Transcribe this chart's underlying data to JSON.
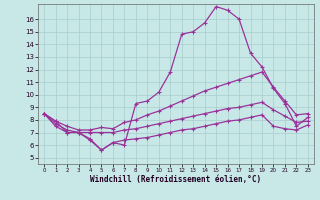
{
  "background_color": "#c8e8e8",
  "grid_color": "#a8cccc",
  "line_color": "#993399",
  "xlabel": "Windchill (Refroidissement éolien,°C)",
  "xlim": [
    -0.5,
    23.5
  ],
  "ylim": [
    4.5,
    17.2
  ],
  "yticks": [
    5,
    6,
    7,
    8,
    9,
    10,
    11,
    12,
    13,
    14,
    15,
    16
  ],
  "xticks": [
    0,
    1,
    2,
    3,
    4,
    5,
    6,
    7,
    8,
    9,
    10,
    11,
    12,
    13,
    14,
    15,
    16,
    17,
    18,
    19,
    20,
    21,
    22,
    23
  ],
  "line1_y": [
    8.5,
    7.9,
    7.0,
    7.0,
    6.5,
    5.6,
    6.2,
    6.0,
    9.3,
    9.5,
    10.2,
    11.8,
    14.8,
    15.0,
    15.7,
    17.0,
    16.7,
    16.0,
    13.3,
    12.2,
    10.5,
    9.3,
    7.5,
    8.2
  ],
  "line2_y": [
    8.5,
    7.9,
    7.5,
    7.2,
    7.2,
    7.4,
    7.3,
    7.8,
    8.0,
    8.4,
    8.7,
    9.1,
    9.5,
    9.9,
    10.3,
    10.6,
    10.9,
    11.2,
    11.5,
    11.8,
    10.6,
    9.5,
    8.4,
    8.5
  ],
  "line3_y": [
    8.5,
    7.7,
    7.2,
    7.0,
    7.0,
    7.0,
    7.0,
    7.2,
    7.3,
    7.5,
    7.7,
    7.9,
    8.1,
    8.3,
    8.5,
    8.7,
    8.9,
    9.0,
    9.2,
    9.4,
    8.8,
    8.3,
    7.8,
    7.9
  ],
  "line4_y": [
    8.5,
    7.5,
    7.0,
    7.0,
    6.4,
    5.6,
    6.2,
    6.4,
    6.5,
    6.6,
    6.8,
    7.0,
    7.2,
    7.3,
    7.5,
    7.7,
    7.9,
    8.0,
    8.2,
    8.4,
    7.5,
    7.3,
    7.2,
    7.6
  ]
}
